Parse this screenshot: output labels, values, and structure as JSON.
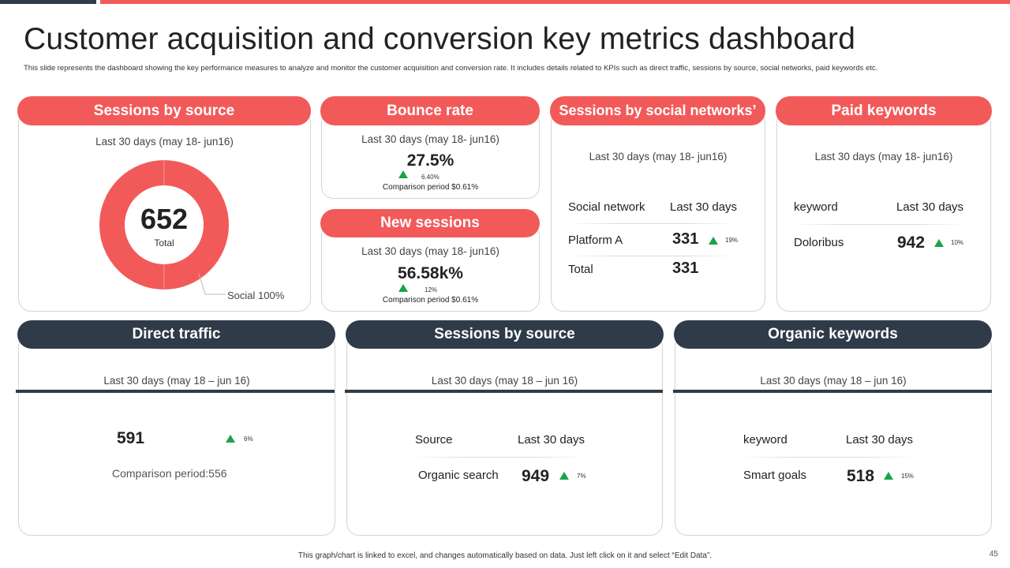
{
  "header": {
    "title": "Customer acquisition and conversion key metrics dashboard",
    "description": "This slide represents the dashboard showing the key performance measures to analyze and monitor the customer acquisition and conversion rate. It includes details related to KPIs such as direct traffic, sessions by source, social networks, paid keywords etc."
  },
  "colors": {
    "accent_red": "#f25a5a",
    "dark": "#2f3b48",
    "up_green": "#1aa34a"
  },
  "sessions_by_source": {
    "title": "Sessions by source",
    "period": "Last 30 days (may 18- jun16)",
    "total_value": "652",
    "total_label": "Total",
    "legend": "Social 100%",
    "chart_data": {
      "type": "pie",
      "categories": [
        "Social"
      ],
      "values": [
        100
      ],
      "center_value": 652
    }
  },
  "bounce_rate": {
    "title": "Bounce rate",
    "period": "Last 30 days (may 18- jun16)",
    "value": "27.5%",
    "change": "6.40%",
    "comparison": "Comparison period $0.61%"
  },
  "new_sessions": {
    "title": "New sessions",
    "period": "Last 30 days (may 18- jun16)",
    "value": "56.58k%",
    "change": "12%",
    "comparison": "Comparison period $0.61%"
  },
  "social_networks": {
    "title": "Sessions by social networks’",
    "period": "Last 30 days (may 18- jun16)",
    "col1": "Social network",
    "col2": "Last 30 days",
    "row_name": "Platform A",
    "row_value": "331",
    "row_change": "19%",
    "total_label": "Total",
    "total_value": "331"
  },
  "paid_keywords": {
    "title": "Paid keywords",
    "period": "Last 30 days (may 18- jun16)",
    "col1": "keyword",
    "col2": "Last 30 days",
    "row_name": "Doloribus",
    "row_value": "942",
    "row_change": "10%"
  },
  "direct_traffic": {
    "title": "Direct traffic",
    "period": "Last 30 days (may 18 – jun 16)",
    "value": "591",
    "change": "6%",
    "comparison": "Comparison period:556"
  },
  "sessions_source2": {
    "title": "Sessions by source",
    "period": "Last 30 days (may 18 – jun 16)",
    "col1": "Source",
    "col2": "Last 30 days",
    "row_name": "Organic search",
    "row_value": "949",
    "row_change": "7%"
  },
  "organic_keywords": {
    "title": "Organic keywords",
    "period": "Last 30 days (may 18 – jun 16)",
    "col1": "keyword",
    "col2": "Last 30 days",
    "row_name": "Smart goals",
    "row_value": "518",
    "row_change": "15%"
  },
  "footer": {
    "note": "This graph/chart is linked to excel, and changes automatically based on data. Just left click on it and select “Edit Data”.",
    "page_number": "45"
  }
}
